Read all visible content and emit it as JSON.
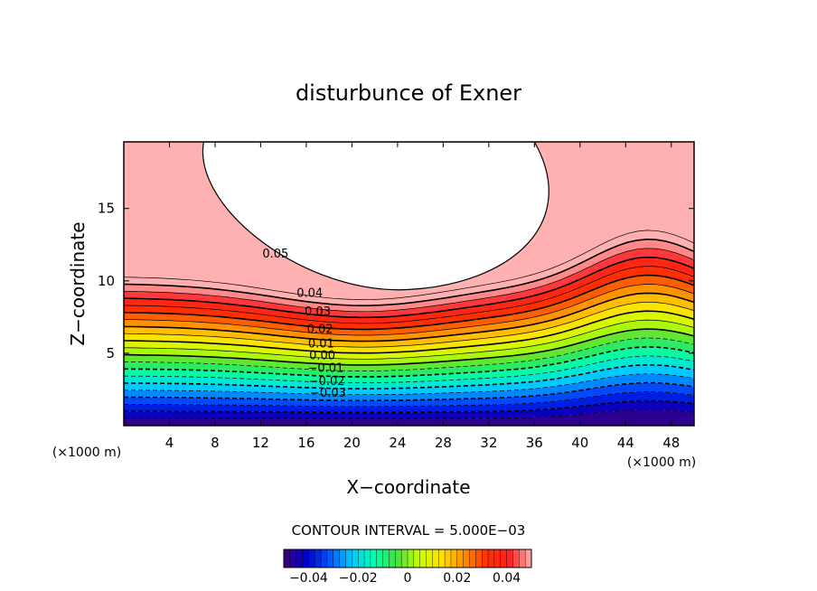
{
  "chart_data": {
    "type": "contour",
    "title": "disturbunce of Exner",
    "xlabel": "X−coordinate",
    "ylabel": "Z−coordinate",
    "x_unit": "(×1000 m)",
    "y_unit": "(×1000 m)",
    "xlim": [
      0,
      50
    ],
    "ylim": [
      0,
      19.6
    ],
    "x_ticks": [
      "4",
      "8",
      "12",
      "16",
      "20",
      "24",
      "28",
      "32",
      "36",
      "40",
      "44",
      "48"
    ],
    "y_ticks": [
      "5",
      "10",
      "15"
    ],
    "contour_interval_text": "CONTOUR INTERVAL = 5.000E−03",
    "contour_interval": 0.005,
    "contour_labels": [
      "0.05",
      "0.04",
      "0.03",
      "0.02",
      "0.01",
      "0.00",
      "−0.01",
      "−0.02",
      "−0.03"
    ],
    "colorbar": {
      "range": [
        -0.05,
        0.05
      ],
      "tick_labels": [
        "−0.04",
        "−0.02",
        "0",
        "0.02",
        "0.04"
      ],
      "tick_values": [
        -0.04,
        -0.02,
        0,
        0.02,
        0.04
      ]
    },
    "colormap": [
      "#3c007a",
      "#0000cc",
      "#0050ff",
      "#00c8ff",
      "#00ffb0",
      "#40e040",
      "#c8ff00",
      "#ffe000",
      "#ff9000",
      "#ff3000",
      "#ff2020",
      "#ffb0b0"
    ]
  }
}
